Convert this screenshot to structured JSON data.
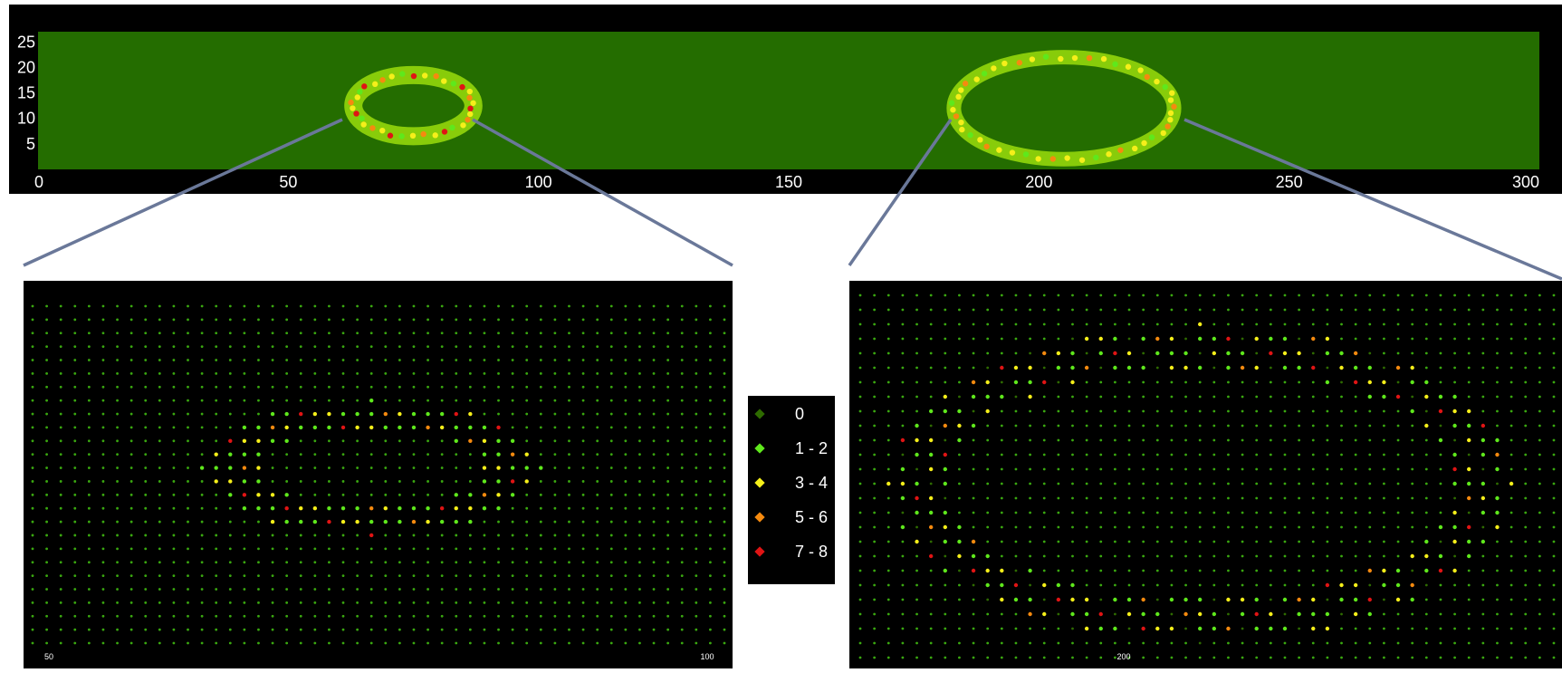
{
  "chart_data": [
    {
      "type": "heatmap",
      "panel": "overview",
      "title": "",
      "xlabel": "",
      "ylabel": "",
      "xlim": [
        0,
        300
      ],
      "ylim": [
        0,
        27
      ],
      "x_tick_labels": [
        "0",
        "50",
        "100",
        "150",
        "200",
        "250",
        "300"
      ],
      "y_tick_labels": [
        "5",
        "10",
        "15",
        "20",
        "25"
      ],
      "background_value_class": "0",
      "features": [
        {
          "name": "",
          "shape": "ellipse-ring",
          "center": [
            75,
            12.5
          ],
          "radii": [
            12,
            6
          ],
          "peak_class": "7 - 8"
        },
        {
          "name": "",
          "shape": "ellipse-ring",
          "center": [
            205,
            12
          ],
          "radii": [
            22,
            10
          ],
          "peak_class": "5 - 6"
        }
      ]
    },
    {
      "type": "heatmap",
      "panel": "zoom-left",
      "title": "",
      "xlim": [
        50,
        100
      ],
      "x_tick_labels": [
        "50",
        "100"
      ],
      "grid_columns": 50,
      "grid_rows": 26,
      "background_value_class": "0",
      "ring": {
        "center_col": 24,
        "center_row": 12,
        "outer_radii": [
          12,
          5
        ],
        "inner_radii": [
          8,
          3
        ]
      }
    },
    {
      "type": "heatmap",
      "panel": "zoom-right",
      "title": "",
      "xlim": [
        181,
        231
      ],
      "x_tick_labels": [
        "200"
      ],
      "grid_columns": 50,
      "grid_rows": 26,
      "background_value_class": "0",
      "ring": {
        "center_col": 24,
        "center_row": 13,
        "outer_radii": [
          22,
          11
        ],
        "inner_radii": [
          18,
          8
        ]
      }
    }
  ],
  "legend": {
    "items": [
      {
        "label": "0",
        "color": "#2e6b00"
      },
      {
        "label": "1 - 2",
        "color": "#5fe81c"
      },
      {
        "label": "3 - 4",
        "color": "#f5ef1a"
      },
      {
        "label": "5 - 6",
        "color": "#f58a0f"
      },
      {
        "label": "7 - 8",
        "color": "#e01414"
      }
    ]
  },
  "colors": {
    "overview_background": "#246d00",
    "overview_ring": "#88cc0a",
    "connector": "#6a7899"
  }
}
